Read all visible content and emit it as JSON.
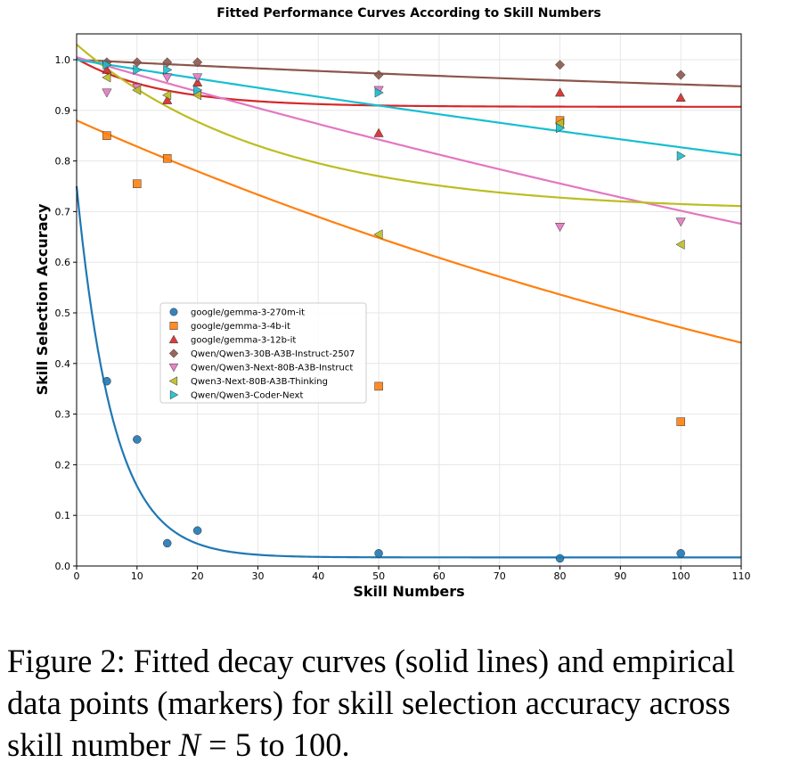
{
  "chart_data": {
    "type": "scatter",
    "title": "Fitted Performance Curves According to Skill Numbers",
    "xlabel": "Skill Numbers",
    "ylabel": "Skill Selection Accuracy",
    "xlim": [
      0,
      110
    ],
    "ylim": [
      0.0,
      1.05
    ],
    "xticks": [
      0,
      10,
      20,
      30,
      40,
      50,
      60,
      70,
      80,
      90,
      100,
      110
    ],
    "yticks": [
      0.0,
      0.1,
      0.2,
      0.3,
      0.4,
      0.5,
      0.6,
      0.7,
      0.8,
      0.9,
      1.0
    ],
    "grid": true,
    "legend_position": "center-left",
    "series": [
      {
        "name": "google/gemma-3-270m-it",
        "color": "#1f77b4",
        "marker": "circle",
        "x": [
          5,
          10,
          15,
          20,
          50,
          80,
          100
        ],
        "y": [
          0.365,
          0.25,
          0.045,
          0.07,
          0.025,
          0.015,
          0.025
        ],
        "fit": {
          "a": 0.733,
          "k": 0.165,
          "c": 0.017
        }
      },
      {
        "name": "google/gemma-3-4b-it",
        "color": "#ff7f0e",
        "marker": "square",
        "x": [
          5,
          10,
          15,
          50,
          80,
          100
        ],
        "y": [
          0.85,
          0.755,
          0.805,
          0.355,
          0.88,
          0.285
        ],
        "fit": {
          "a": 0.98,
          "k": 0.0054,
          "c": -0.1
        }
      },
      {
        "name": "google/gemma-3-12b-it",
        "color": "#d62728",
        "marker": "triangle-up",
        "x": [
          5,
          15,
          20,
          50,
          80,
          100
        ],
        "y": [
          0.98,
          0.92,
          0.955,
          0.855,
          0.935,
          0.925
        ],
        "fit": {
          "a": 0.095,
          "k": 0.072,
          "c": 0.907
        }
      },
      {
        "name": "Qwen/Qwen3-30B-A3B-Instruct-2507",
        "color": "#8c564b",
        "marker": "diamond",
        "x": [
          5,
          10,
          15,
          20,
          50,
          80,
          100
        ],
        "y": [
          0.995,
          0.995,
          0.995,
          0.995,
          0.97,
          0.99,
          0.97
        ],
        "fit": {
          "a": 0.13,
          "k": 0.0047,
          "c": 0.87
        }
      },
      {
        "name": "Qwen/Qwen3-Next-80B-A3B-Instruct",
        "color": "#e377c2",
        "marker": "triangle-down",
        "x": [
          5,
          10,
          15,
          20,
          50,
          80,
          100
        ],
        "y": [
          0.935,
          0.945,
          0.965,
          0.965,
          0.94,
          0.67,
          0.68
        ],
        "fit": {
          "a": 1.205,
          "k": 0.0029,
          "c": -0.2
        }
      },
      {
        "name": "Qwen3-Next-80B-A3B-Thinking",
        "color": "#bcbd22",
        "marker": "triangle-left",
        "x": [
          5,
          10,
          15,
          20,
          50,
          80,
          100
        ],
        "y": [
          0.965,
          0.94,
          0.93,
          0.93,
          0.655,
          0.875,
          0.635
        ],
        "fit": {
          "a": 0.33,
          "k": 0.031,
          "c": 0.7
        }
      },
      {
        "name": "Qwen/Qwen3-Coder-Next",
        "color": "#17becf",
        "marker": "triangle-right",
        "x": [
          5,
          10,
          15,
          20,
          50,
          80,
          100
        ],
        "y": [
          0.99,
          0.98,
          0.98,
          0.94,
          0.935,
          0.865,
          0.81
        ],
        "fit": {
          "a": 1.0,
          "k": 0.0019,
          "c": 0.0
        }
      }
    ]
  },
  "caption": {
    "lead": "Figure 2: Fitted decay curves (solid lines) and empirical data points (markers) for skill selection accuracy across skill number ",
    "math": "N",
    "tail": " = 5 to 100."
  }
}
